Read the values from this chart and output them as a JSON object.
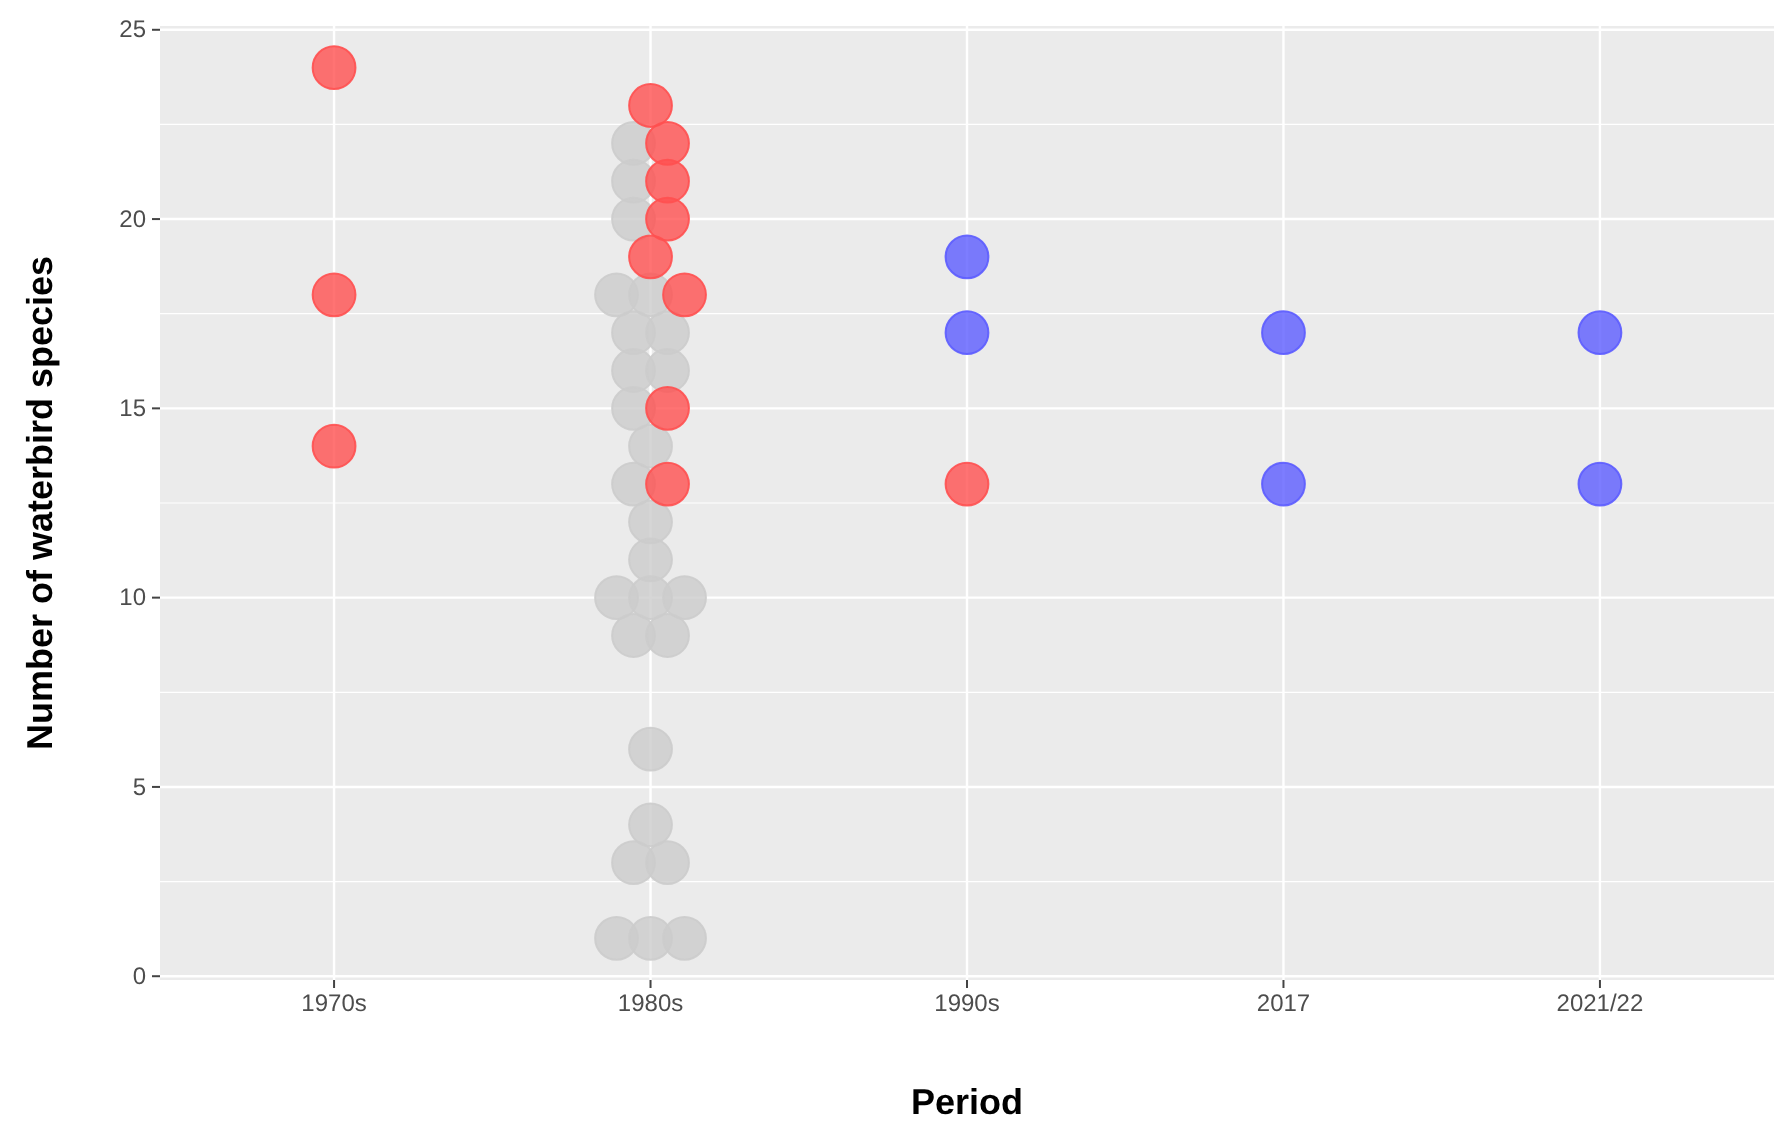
{
  "chart_data": {
    "type": "scatter",
    "xlabel": "Period",
    "ylabel": "Number of waterbird species",
    "categories": [
      "1970s",
      "1980s",
      "1990s",
      "2017",
      "2021/22"
    ],
    "ylim": [
      -0.1,
      25.1
    ],
    "yticks": [
      0,
      5,
      10,
      15,
      20,
      25
    ],
    "grid": true,
    "marker": "circle",
    "series": [
      {
        "color": "#cccccc",
        "x": [
          "1980s",
          "1980s",
          "1980s",
          "1980s",
          "1980s",
          "1980s",
          "1980s",
          "1980s",
          "1980s",
          "1980s",
          "1980s",
          "1980s",
          "1980s",
          "1980s",
          "1980s",
          "1980s",
          "1980s",
          "1980s",
          "1980s",
          "1980s",
          "1980s",
          "1980s",
          "1980s",
          "1980s",
          "1980s",
          "1980s"
        ],
        "values": [
          22,
          21,
          20,
          18,
          18,
          17,
          17,
          16,
          16,
          15,
          14,
          13,
          12,
          11,
          10,
          10,
          10,
          9,
          9,
          6,
          4,
          3,
          3,
          1,
          1,
          1
        ]
      },
      {
        "color": "#ff5050",
        "x": [
          "1970s",
          "1970s",
          "1970s",
          "1980s",
          "1980s",
          "1980s",
          "1980s",
          "1980s",
          "1980s",
          "1980s",
          "1980s",
          "1990s"
        ],
        "values": [
          24,
          18,
          14,
          23,
          22,
          21,
          20,
          19,
          18,
          15,
          13,
          13
        ]
      },
      {
        "color": "#5c5cff",
        "values": [
          null,
          null,
          19,
          17,
          17
        ]
      },
      {
        "color": "#5c5cff",
        "values": [
          null,
          null,
          17,
          13,
          13
        ]
      }
    ]
  }
}
